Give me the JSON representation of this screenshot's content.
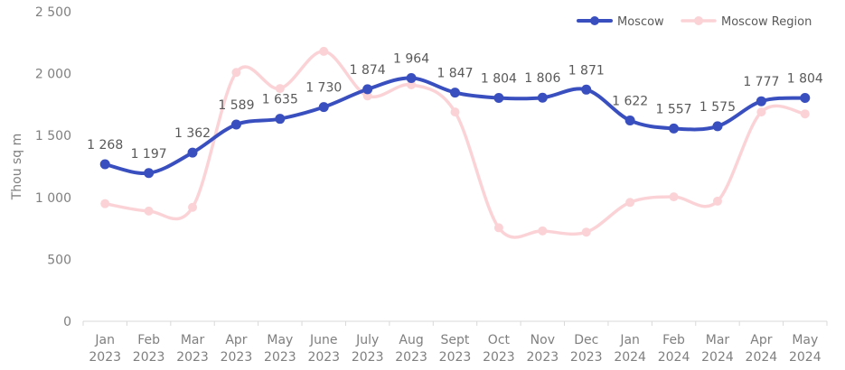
{
  "chart_data": {
    "type": "line",
    "ylabel": "Thou sq m",
    "ylim": [
      0,
      2500
    ],
    "y_ticks": [
      "0",
      "500",
      "1 000",
      "1 500",
      "2 000",
      "2 500"
    ],
    "y_tick_values": [
      0,
      500,
      1000,
      1500,
      2000,
      2500
    ],
    "categories": [
      [
        "Jan",
        "2023"
      ],
      [
        "Feb",
        "2023"
      ],
      [
        "Mar",
        "2023"
      ],
      [
        "Apr",
        "2023"
      ],
      [
        "May",
        "2023"
      ],
      [
        "June",
        "2023"
      ],
      [
        "July",
        "2023"
      ],
      [
        "Aug",
        "2023"
      ],
      [
        "Sept",
        "2023"
      ],
      [
        "Oct",
        "2023"
      ],
      [
        "Nov",
        "2023"
      ],
      [
        "Dec",
        "2023"
      ],
      [
        "Jan",
        "2024"
      ],
      [
        "Feb",
        "2024"
      ],
      [
        "Mar",
        "2024"
      ],
      [
        "Apr",
        "2024"
      ],
      [
        "May",
        "2024"
      ]
    ],
    "series": [
      {
        "name": "Moscow",
        "color": "#3a4fbf",
        "values": [
          1268,
          1197,
          1362,
          1589,
          1635,
          1730,
          1874,
          1964,
          1847,
          1804,
          1806,
          1871,
          1622,
          1557,
          1575,
          1777,
          1804
        ],
        "labels": [
          "1 268",
          "1 197",
          "1 362",
          "1 589",
          "1 635",
          "1 730",
          "1 874",
          "1 964",
          "1 847",
          "1 804",
          "1 806",
          "1 871",
          "1 622",
          "1 557",
          "1 575",
          "1 777",
          "1 804"
        ]
      },
      {
        "name": "Moscow Region",
        "color": "#fbd3d7",
        "values": [
          950,
          890,
          920,
          2010,
          1880,
          2180,
          1820,
          1910,
          1690,
          755,
          730,
          720,
          960,
          1005,
          970,
          1690,
          1675
        ]
      }
    ],
    "legend_position": "top-right",
    "grid": false
  }
}
